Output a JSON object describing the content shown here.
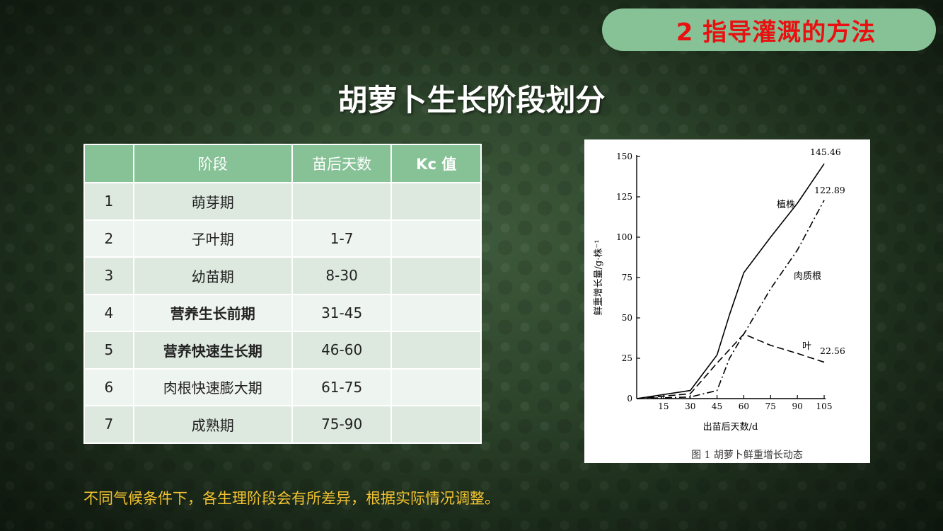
{
  "header": {
    "section_label": "2 指导灌溉的方法"
  },
  "page_title": "胡萝卜生长阶段划分",
  "table": {
    "headers": [
      "",
      "阶段",
      "苗后天数",
      "Kc 值"
    ],
    "rows": [
      {
        "idx": "1",
        "stage": "萌芽期",
        "days": "",
        "kc": "",
        "bold": false
      },
      {
        "idx": "2",
        "stage": "子叶期",
        "days": "1-7",
        "kc": "",
        "bold": false
      },
      {
        "idx": "3",
        "stage": "幼苗期",
        "days": "8-30",
        "kc": "",
        "bold": false
      },
      {
        "idx": "4",
        "stage": "营养生长前期",
        "days": "31-45",
        "kc": "",
        "bold": true
      },
      {
        "idx": "5",
        "stage": "营养快速生长期",
        "days": "46-60",
        "kc": "",
        "bold": true
      },
      {
        "idx": "6",
        "stage": "肉根快速膨大期",
        "days": "61-75",
        "kc": "",
        "bold": false
      },
      {
        "idx": "7",
        "stage": "成熟期",
        "days": "75-90",
        "kc": "",
        "bold": false
      }
    ]
  },
  "chart_data": {
    "type": "line",
    "title": "图 1 胡萝卜鲜重增长动态",
    "xlabel": "出苗后天数/d",
    "ylabel": "鲜重增长量/g·株⁻¹",
    "xlim": [
      0,
      105
    ],
    "ylim": [
      0,
      150
    ],
    "x_ticks": [
      15,
      30,
      45,
      60,
      75,
      90,
      105
    ],
    "y_ticks": [
      0,
      25,
      50,
      75,
      100,
      125,
      150
    ],
    "series": [
      {
        "name": "植株",
        "style": "solid",
        "end_label": "145.46",
        "x": [
          0,
          30,
          45,
          52,
          60,
          75,
          90,
          105
        ],
        "y": [
          0,
          5,
          27,
          52,
          78,
          100,
          121,
          145.46
        ]
      },
      {
        "name": "肉质根",
        "style": "dashdot",
        "end_label": "122.89",
        "x": [
          0,
          30,
          45,
          52,
          60,
          75,
          90,
          105
        ],
        "y": [
          0,
          1,
          5,
          25,
          40,
          68,
          92,
          122.89
        ]
      },
      {
        "name": "叶",
        "style": "dashed",
        "end_label": "22.56",
        "x": [
          0,
          30,
          45,
          60,
          75,
          90,
          105
        ],
        "y": [
          0,
          3,
          22,
          40,
          33,
          28,
          22.56
        ]
      }
    ]
  },
  "note": "不同气候条件下，各生理阶段会有所差异，根据实际情况调整。"
}
